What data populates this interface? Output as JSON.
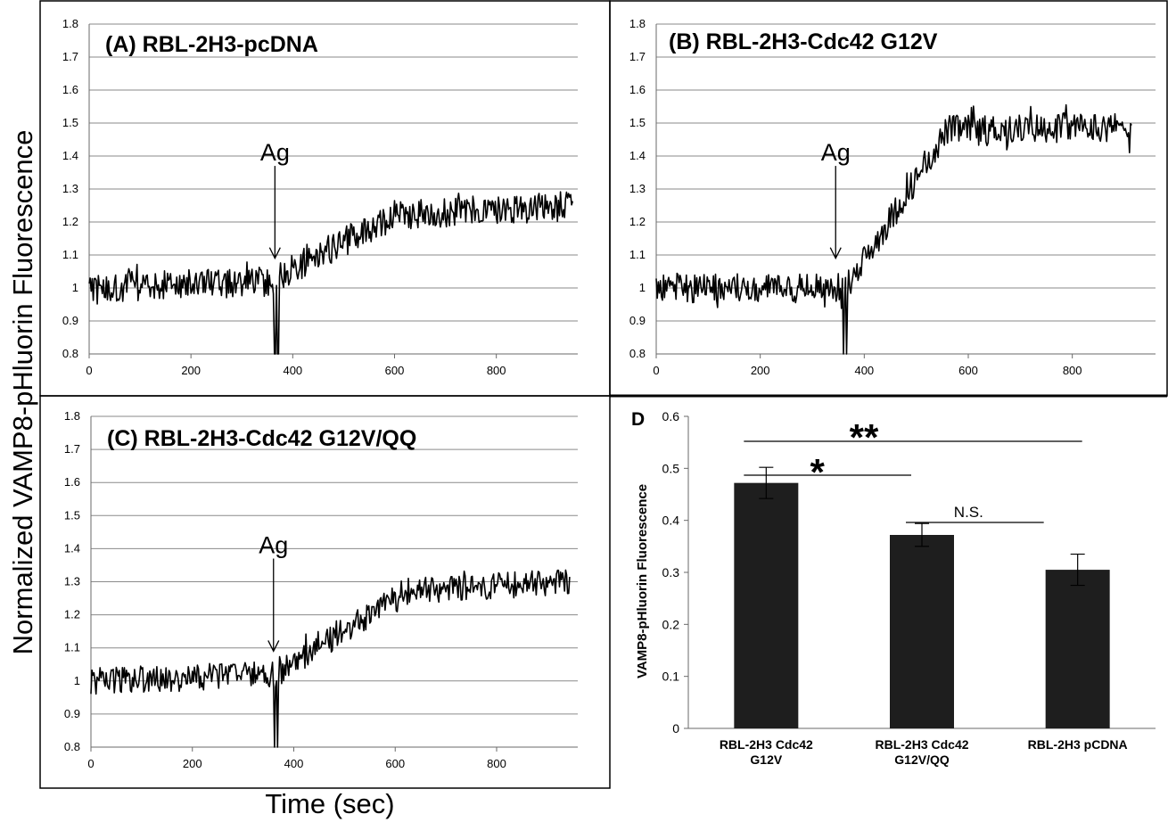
{
  "figure": {
    "ylabel": "Normalized VAMP8-pHluorin Fluorescence",
    "xlabel": "Time (sec)"
  },
  "chart_data": [
    {
      "type": "line",
      "title": "(A) RBL-2H3-pcDNA",
      "annotation": {
        "label": "Ag",
        "x": 365
      },
      "xlim": [
        0,
        960
      ],
      "ylim": [
        0.8,
        1.8
      ],
      "xticks": [
        "0",
        "200",
        "400",
        "600",
        "800"
      ],
      "yticks": [
        "0.8",
        "0.9",
        "1",
        "1.1",
        "1.2",
        "1.3",
        "1.4",
        "1.5",
        "1.6",
        "1.7",
        "1.8"
      ],
      "x_end": 950,
      "segments": [
        {
          "x": [
            0,
            365
          ],
          "y": [
            1.0,
            1.02
          ],
          "noise": 0.045
        },
        {
          "x": [
            365,
            600
          ],
          "y": [
            1.03,
            1.22
          ],
          "noise": 0.045
        },
        {
          "x": [
            600,
            950
          ],
          "y": [
            1.22,
            1.25
          ],
          "noise": 0.045
        }
      ],
      "dip": {
        "x": 365,
        "y": 0.8
      }
    },
    {
      "type": "line",
      "title": "(B) RBL-2H3-Cdc42 G12V",
      "annotation": {
        "label": "Ag",
        "x": 345
      },
      "xlim": [
        0,
        960
      ],
      "ylim": [
        0.8,
        1.8
      ],
      "xticks": [
        "0",
        "200",
        "400",
        "600",
        "800"
      ],
      "yticks": [
        "0.8",
        "0.9",
        "1",
        "1.1",
        "1.2",
        "1.3",
        "1.4",
        "1.5",
        "1.6",
        "1.7",
        "1.8"
      ],
      "x_end": 915,
      "segments": [
        {
          "x": [
            0,
            365
          ],
          "y": [
            1.0,
            1.0
          ],
          "noise": 0.045
        },
        {
          "x": [
            365,
            560
          ],
          "y": [
            1.0,
            1.48
          ],
          "noise": 0.045
        },
        {
          "x": [
            560,
            915
          ],
          "y": [
            1.48,
            1.49
          ],
          "noise": 0.045
        }
      ],
      "dip": {
        "x": 360,
        "y": 0.8
      }
    },
    {
      "type": "line",
      "title": "(C) RBL-2H3-Cdc42 G12V/QQ",
      "annotation": {
        "label": "Ag",
        "x": 360
      },
      "xlim": [
        0,
        960
      ],
      "ylim": [
        0.8,
        1.8
      ],
      "xticks": [
        "0",
        "200",
        "400",
        "600",
        "800"
      ],
      "yticks": [
        "0.8",
        "0.9",
        "1",
        "1.1",
        "1.2",
        "1.3",
        "1.4",
        "1.5",
        "1.6",
        "1.7",
        "1.8"
      ],
      "x_end": 945,
      "segments": [
        {
          "x": [
            0,
            365
          ],
          "y": [
            1.0,
            1.02
          ],
          "noise": 0.04
        },
        {
          "x": [
            365,
            620
          ],
          "y": [
            1.02,
            1.27
          ],
          "noise": 0.04
        },
        {
          "x": [
            620,
            945
          ],
          "y": [
            1.27,
            1.3
          ],
          "noise": 0.04
        }
      ],
      "dip": {
        "x": 362,
        "y": 0.8
      }
    },
    {
      "type": "bar",
      "title": "D",
      "ylabel": "VAMP8-pHluorin Fluorescence",
      "ylim": [
        0,
        0.6
      ],
      "yticks": [
        "0",
        "0.1",
        "0.2",
        "0.3",
        "0.4",
        "0.5",
        "0.6"
      ],
      "categories": [
        {
          "line1": "RBL-2H3 Cdc42",
          "line2": "G12V"
        },
        {
          "line1": "RBL-2H3 Cdc42",
          "line2": "G12V/QQ"
        },
        {
          "line1": "RBL-2H3 pCDNA",
          "line2": ""
        }
      ],
      "values": [
        0.472,
        0.372,
        0.305
      ],
      "errors": [
        0.03,
        0.022,
        0.03
      ],
      "significance": [
        {
          "label": "**",
          "from": 0,
          "to": 2
        },
        {
          "label": "*",
          "from": 0,
          "to": 1
        },
        {
          "label": "N.S.",
          "from": 1,
          "to": 2
        }
      ],
      "bar_color": "#1e1e1e"
    }
  ]
}
